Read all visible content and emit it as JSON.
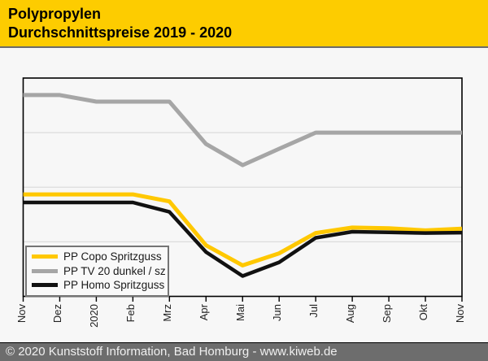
{
  "header": {
    "title_line1": "Polypropylen",
    "title_line2": "Durchschnittspreise 2019 - 2020"
  },
  "footer": {
    "copyright": "© 2020 Kunststoff Information, Bad Homburg - www.kiweb.de"
  },
  "colors": {
    "header_bg": "#FDCC00",
    "separator": "#6B6B6B",
    "chart_bg": "#F7F7F7",
    "plot_border": "#000000",
    "gridline": "#DCDCDC",
    "tick": "#000000",
    "legend_border": "#757575",
    "footer_bg": "#6D6D6D",
    "footer_text": "#F0F0F0"
  },
  "chart_data": {
    "type": "line",
    "title": "Polypropylen Durchschnittspreise 2019 - 2020",
    "x_categories": [
      "Nov",
      "Dez",
      "2020",
      "Feb",
      "Mrz",
      "Apr",
      "Mai",
      "Jun",
      "Jul",
      "Aug",
      "Sep",
      "Okt",
      "Nov"
    ],
    "xlabel": "",
    "ylabel": "",
    "y_axis": {
      "labels_visible": false,
      "note": "no y-axis tick labels shown; values are relative price level, 0 = plot bottom, 100 = plot top",
      "ylim": [
        0,
        100
      ],
      "gridlines": [
        25,
        50,
        75
      ]
    },
    "grid": "horizontal-only",
    "legend_position": "bottom-left-inside",
    "z_order": [
      1,
      0,
      2
    ],
    "series": [
      {
        "name": "PP Copo Spritzguss",
        "color": "#FFC800",
        "values": [
          46.7,
          46.7,
          46.7,
          46.7,
          43.5,
          23.4,
          14.2,
          19.7,
          29.0,
          31.5,
          31.2,
          30.2,
          31.0
        ]
      },
      {
        "name": "PP TV 20 dunkel / sz",
        "color": "#A6A6A6",
        "values": [
          92.2,
          92.2,
          89.2,
          89.2,
          89.2,
          69.8,
          60.1,
          67.6,
          75.0,
          75.0,
          75.0,
          75.0,
          75.0
        ]
      },
      {
        "name": "PP Homo Spritzguss",
        "color": "#111111",
        "values": [
          43.0,
          43.0,
          43.0,
          43.0,
          38.7,
          20.3,
          9.3,
          15.6,
          26.8,
          29.6,
          29.3,
          29.0,
          29.2
        ]
      }
    ]
  }
}
